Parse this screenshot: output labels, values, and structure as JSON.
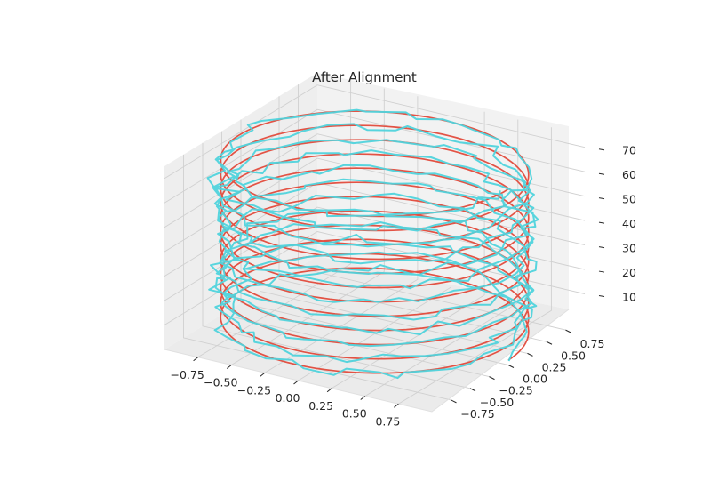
{
  "chart_data": {
    "type": "line3d",
    "title": "After Alignment",
    "xlabel": "",
    "ylabel": "",
    "zlabel": "",
    "xlim": [
      -1.0,
      1.0
    ],
    "ylim": [
      -1.0,
      1.0
    ],
    "zlim": [
      0,
      75
    ],
    "grid": true,
    "x_ticks": [
      "−0.75",
      "−0.50",
      "−0.25",
      "0.00",
      "0.25",
      "0.50",
      "0.75"
    ],
    "y_ticks": [
      "−0.75",
      "−0.50",
      "−0.25",
      "0.00",
      "0.25",
      "0.50",
      "0.75"
    ],
    "z_ticks": [
      "10",
      "20",
      "30",
      "40",
      "50",
      "60",
      "70"
    ],
    "x_tick_values": [
      -0.75,
      -0.5,
      -0.25,
      0.0,
      0.25,
      0.5,
      0.75
    ],
    "y_tick_values": [
      -0.75,
      -0.5,
      -0.25,
      0.0,
      0.25,
      0.5,
      0.75
    ],
    "z_tick_values": [
      10,
      20,
      30,
      40,
      50,
      60,
      70
    ],
    "series": [
      {
        "color": "#e24a3b",
        "kind": "reference helix",
        "radius": 1.0,
        "turns": 12,
        "z_range": [
          2,
          72
        ],
        "noise": 0
      },
      {
        "color": "#4fd3dc",
        "kind": "aligned noisy helix",
        "radius": 1.0,
        "turns": 12,
        "z_range": [
          2,
          72
        ],
        "noise": 0.07
      }
    ]
  }
}
